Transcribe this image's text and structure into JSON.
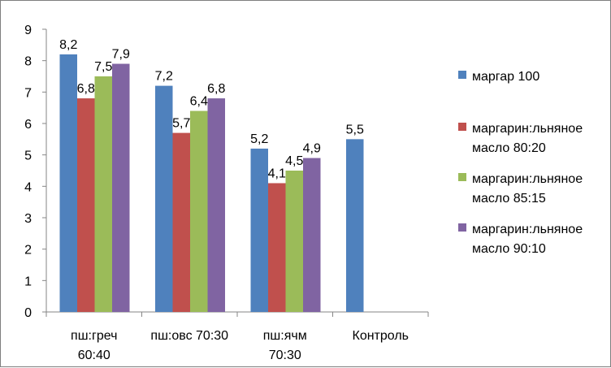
{
  "chart_data": {
    "type": "bar",
    "title": "",
    "xlabel": "",
    "ylabel": "",
    "ylim": [
      0,
      9
    ],
    "yticks": [
      "0",
      "1",
      "2",
      "3",
      "4",
      "5",
      "6",
      "7",
      "8",
      "9"
    ],
    "grid": false,
    "legend_position": "right",
    "categories": [
      {
        "lines": [
          "пш:греч",
          "60:40"
        ]
      },
      {
        "lines": [
          "пш:овс 70:30"
        ]
      },
      {
        "lines": [
          "пш:ячм",
          "70:30"
        ]
      },
      {
        "lines": [
          "Контроль"
        ]
      }
    ],
    "series": [
      {
        "name_lines": [
          "маргар 100"
        ],
        "color": "#4f81bd",
        "values": [
          8.2,
          7.2,
          5.2,
          5.5
        ],
        "labels": [
          "8,2",
          "7,2",
          "5,2",
          "5,5"
        ]
      },
      {
        "name_lines": [
          "маргарин:льняное",
          "масло 80:20"
        ],
        "color": "#c0504d",
        "values": [
          6.8,
          5.7,
          4.1,
          null
        ],
        "labels": [
          "6,8",
          "5,7",
          "4,1",
          null
        ]
      },
      {
        "name_lines": [
          "маргарин:льняное",
          "масло 85:15"
        ],
        "color": "#9bbb59",
        "values": [
          7.5,
          6.4,
          4.5,
          null
        ],
        "labels": [
          "7,5",
          "6,4",
          "4,5",
          null
        ]
      },
      {
        "name_lines": [
          "маргарин:льняное",
          "масло 90:10"
        ],
        "color": "#8064a2",
        "values": [
          7.9,
          6.8,
          4.9,
          null
        ],
        "labels": [
          "7,9",
          "6,8",
          "4,9",
          null
        ]
      }
    ]
  }
}
